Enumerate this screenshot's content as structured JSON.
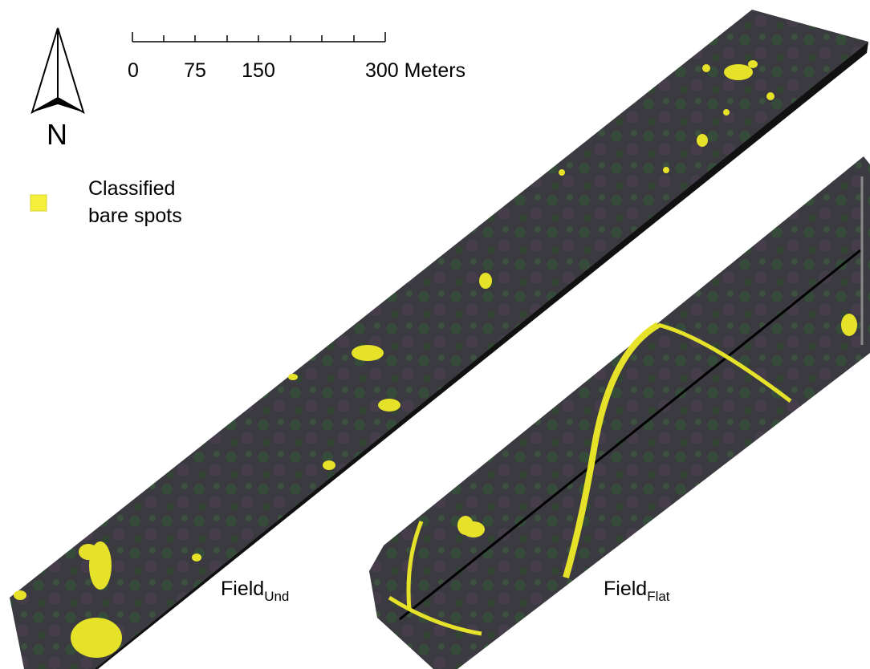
{
  "north_arrow": {
    "label": "N"
  },
  "scale_bar": {
    "labels": [
      "0",
      "75",
      "150",
      "300 Meters"
    ]
  },
  "legend": {
    "lines": [
      "Classified",
      "bare spots"
    ]
  },
  "fields": [
    {
      "main": "Field",
      "sub": "Und"
    },
    {
      "main": "Field",
      "sub": "Flat"
    }
  ]
}
